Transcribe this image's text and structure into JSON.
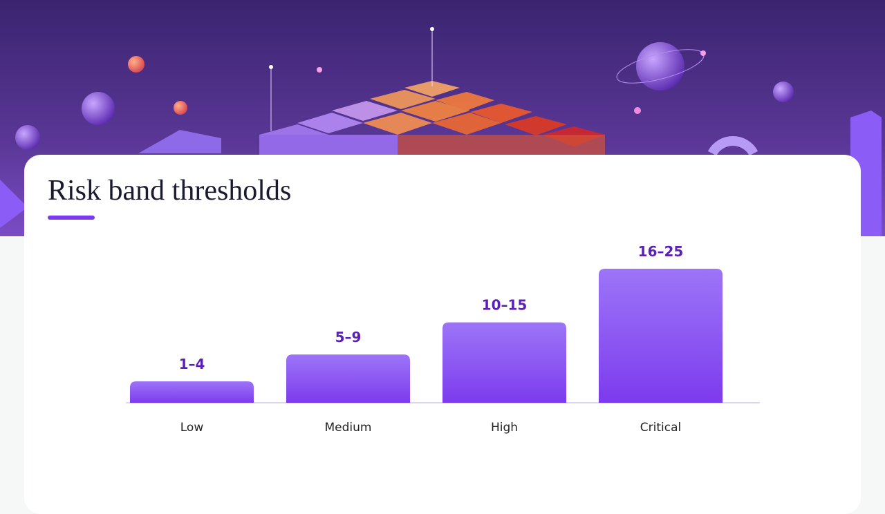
{
  "chart_data": {
    "type": "bar",
    "title": "Risk band thresholds",
    "categories": [
      "Low",
      "Medium",
      "High",
      "Critical"
    ],
    "values": [
      4,
      9,
      15,
      25
    ],
    "value_labels": [
      "1–4",
      "5–9",
      "10–15",
      "16–25"
    ],
    "color": "#8b5cf6"
  }
}
